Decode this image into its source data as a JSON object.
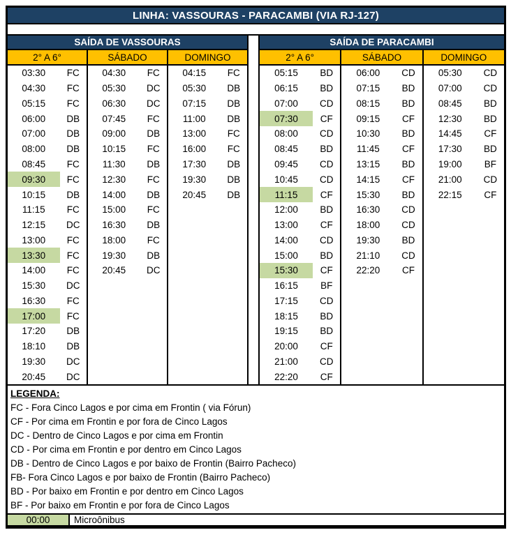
{
  "title": "LINHA: VASSOURAS - PARACAMBI (VIA RJ-127)",
  "colors": {
    "header_navy": "#1E4164",
    "day_header_yellow": "#FFC000",
    "highlight_green": "#C6D9A2",
    "border_black": "#000000"
  },
  "highlight_meaning": "Microônibus",
  "tables": [
    {
      "section": "SAÍDA DE VASSOURAS",
      "columns": [
        {
          "header": "2° A 6°",
          "rows": [
            {
              "t": "03:30",
              "c": "FC"
            },
            {
              "t": "04:30",
              "c": "FC"
            },
            {
              "t": "05:15",
              "c": "FC"
            },
            {
              "t": "06:00",
              "c": "DB"
            },
            {
              "t": "07:00",
              "c": "DB"
            },
            {
              "t": "08:00",
              "c": "DB"
            },
            {
              "t": "08:45",
              "c": "FC"
            },
            {
              "t": "09:30",
              "c": "FC",
              "h": true
            },
            {
              "t": "10:15",
              "c": "DB"
            },
            {
              "t": "11:15",
              "c": "FC"
            },
            {
              "t": "12:15",
              "c": "DC"
            },
            {
              "t": "13:00",
              "c": "FC"
            },
            {
              "t": "13:30",
              "c": "FC",
              "h": true
            },
            {
              "t": "14:00",
              "c": "FC"
            },
            {
              "t": "15:30",
              "c": "DC"
            },
            {
              "t": "16:30",
              "c": "FC"
            },
            {
              "t": "17:00",
              "c": "FC",
              "h": true
            },
            {
              "t": "17:20",
              "c": "DB"
            },
            {
              "t": "18:10",
              "c": "DB"
            },
            {
              "t": "19:30",
              "c": "DC"
            },
            {
              "t": "20:45",
              "c": "DC"
            }
          ]
        },
        {
          "header": "SÁBADO",
          "rows": [
            {
              "t": "04:30",
              "c": "FC"
            },
            {
              "t": "05:30",
              "c": "DC"
            },
            {
              "t": "06:30",
              "c": "DC"
            },
            {
              "t": "07:45",
              "c": "FC"
            },
            {
              "t": "09:00",
              "c": "DB"
            },
            {
              "t": "10:15",
              "c": "FC"
            },
            {
              "t": "11:30",
              "c": "DB"
            },
            {
              "t": "12:30",
              "c": "FC"
            },
            {
              "t": "14:00",
              "c": "DB"
            },
            {
              "t": "15:00",
              "c": "FC"
            },
            {
              "t": "16:30",
              "c": "DB"
            },
            {
              "t": "18:00",
              "c": "FC"
            },
            {
              "t": "19:30",
              "c": "DB"
            },
            {
              "t": "20:45",
              "c": "DC"
            }
          ]
        },
        {
          "header": "DOMINGO",
          "rows": [
            {
              "t": "04:15",
              "c": "FC"
            },
            {
              "t": "05:30",
              "c": "DB"
            },
            {
              "t": "07:15",
              "c": "DB"
            },
            {
              "t": "11:00",
              "c": "DB"
            },
            {
              "t": "13:00",
              "c": "FC"
            },
            {
              "t": "16:00",
              "c": "FC"
            },
            {
              "t": "17:30",
              "c": "DB"
            },
            {
              "t": "19:30",
              "c": "DB"
            },
            {
              "t": "20:45",
              "c": "DB"
            }
          ]
        }
      ]
    },
    {
      "section": "SAÍDA DE PARACAMBI",
      "columns": [
        {
          "header": "2° A 6°",
          "rows": [
            {
              "t": "05:15",
              "c": "BD"
            },
            {
              "t": "06:15",
              "c": "BD"
            },
            {
              "t": "07:00",
              "c": "CD"
            },
            {
              "t": "07:30",
              "c": "CF",
              "h": true
            },
            {
              "t": "08:00",
              "c": "CD"
            },
            {
              "t": "08:45",
              "c": "BD"
            },
            {
              "t": "09:45",
              "c": "CD"
            },
            {
              "t": "10:45",
              "c": "CD"
            },
            {
              "t": "11:15",
              "c": "CF",
              "h": true
            },
            {
              "t": "12:00",
              "c": "BD"
            },
            {
              "t": "13:00",
              "c": "CF"
            },
            {
              "t": "14:00",
              "c": "CD"
            },
            {
              "t": "15:00",
              "c": "BD"
            },
            {
              "t": "15:30",
              "c": "CF",
              "h": true
            },
            {
              "t": "16:15",
              "c": "BF"
            },
            {
              "t": "17:15",
              "c": "CD"
            },
            {
              "t": "18:15",
              "c": "BD"
            },
            {
              "t": "19:15",
              "c": "BD"
            },
            {
              "t": "20:00",
              "c": "CF"
            },
            {
              "t": "21:00",
              "c": "CD"
            },
            {
              "t": "22:20",
              "c": "CF"
            }
          ]
        },
        {
          "header": "SÁBADO",
          "rows": [
            {
              "t": "06:00",
              "c": "CD"
            },
            {
              "t": "07:15",
              "c": "BD"
            },
            {
              "t": "08:15",
              "c": "BD"
            },
            {
              "t": "09:15",
              "c": "CF"
            },
            {
              "t": "10:30",
              "c": "BD"
            },
            {
              "t": "11:45",
              "c": "CF"
            },
            {
              "t": "13:15",
              "c": "BD"
            },
            {
              "t": "14:15",
              "c": "CF"
            },
            {
              "t": "15:30",
              "c": "BD"
            },
            {
              "t": "16:30",
              "c": "CD"
            },
            {
              "t": "18:00",
              "c": "CD"
            },
            {
              "t": "19:30",
              "c": "BD"
            },
            {
              "t": "21:10",
              "c": "CD"
            },
            {
              "t": "22:20",
              "c": "CF"
            }
          ]
        },
        {
          "header": "DOMINGO",
          "rows": [
            {
              "t": "05:30",
              "c": "CD"
            },
            {
              "t": "07:00",
              "c": "CD"
            },
            {
              "t": "08:45",
              "c": "BD"
            },
            {
              "t": "12:30",
              "c": "BD"
            },
            {
              "t": "14:45",
              "c": "CF"
            },
            {
              "t": "17:30",
              "c": "BD"
            },
            {
              "t": "19:00",
              "c": "BF"
            },
            {
              "t": "21:00",
              "c": "CD"
            },
            {
              "t": "22:15",
              "c": "CF"
            }
          ]
        }
      ]
    }
  ],
  "legend": {
    "title": "LEGENDA:",
    "items": [
      "FC - Fora Cinco Lagos e por cima em Frontin ( via Fórun)",
      "CF - Por cima em Frontin e por fora de Cinco Lagos",
      "DC - Dentro de Cinco Lagos e por cima em Frontin",
      "CD - Por cima em Frontin e por dentro em Cinco Lagos",
      "DB - Dentro de Cinco Lagos e por baixo de Frontin (Bairro Pacheco)",
      "FB- Fora Cinco Lagos e por baixo de Frontin (Bairro Pacheco)",
      "BD - Por baixo em Frontin e por dentro em Cinco Lagos",
      "BF - Por baixo em Frontin e por fora de Cinco Lagos"
    ],
    "micro": {
      "time": "00:00",
      "label": "Microônibus"
    }
  }
}
